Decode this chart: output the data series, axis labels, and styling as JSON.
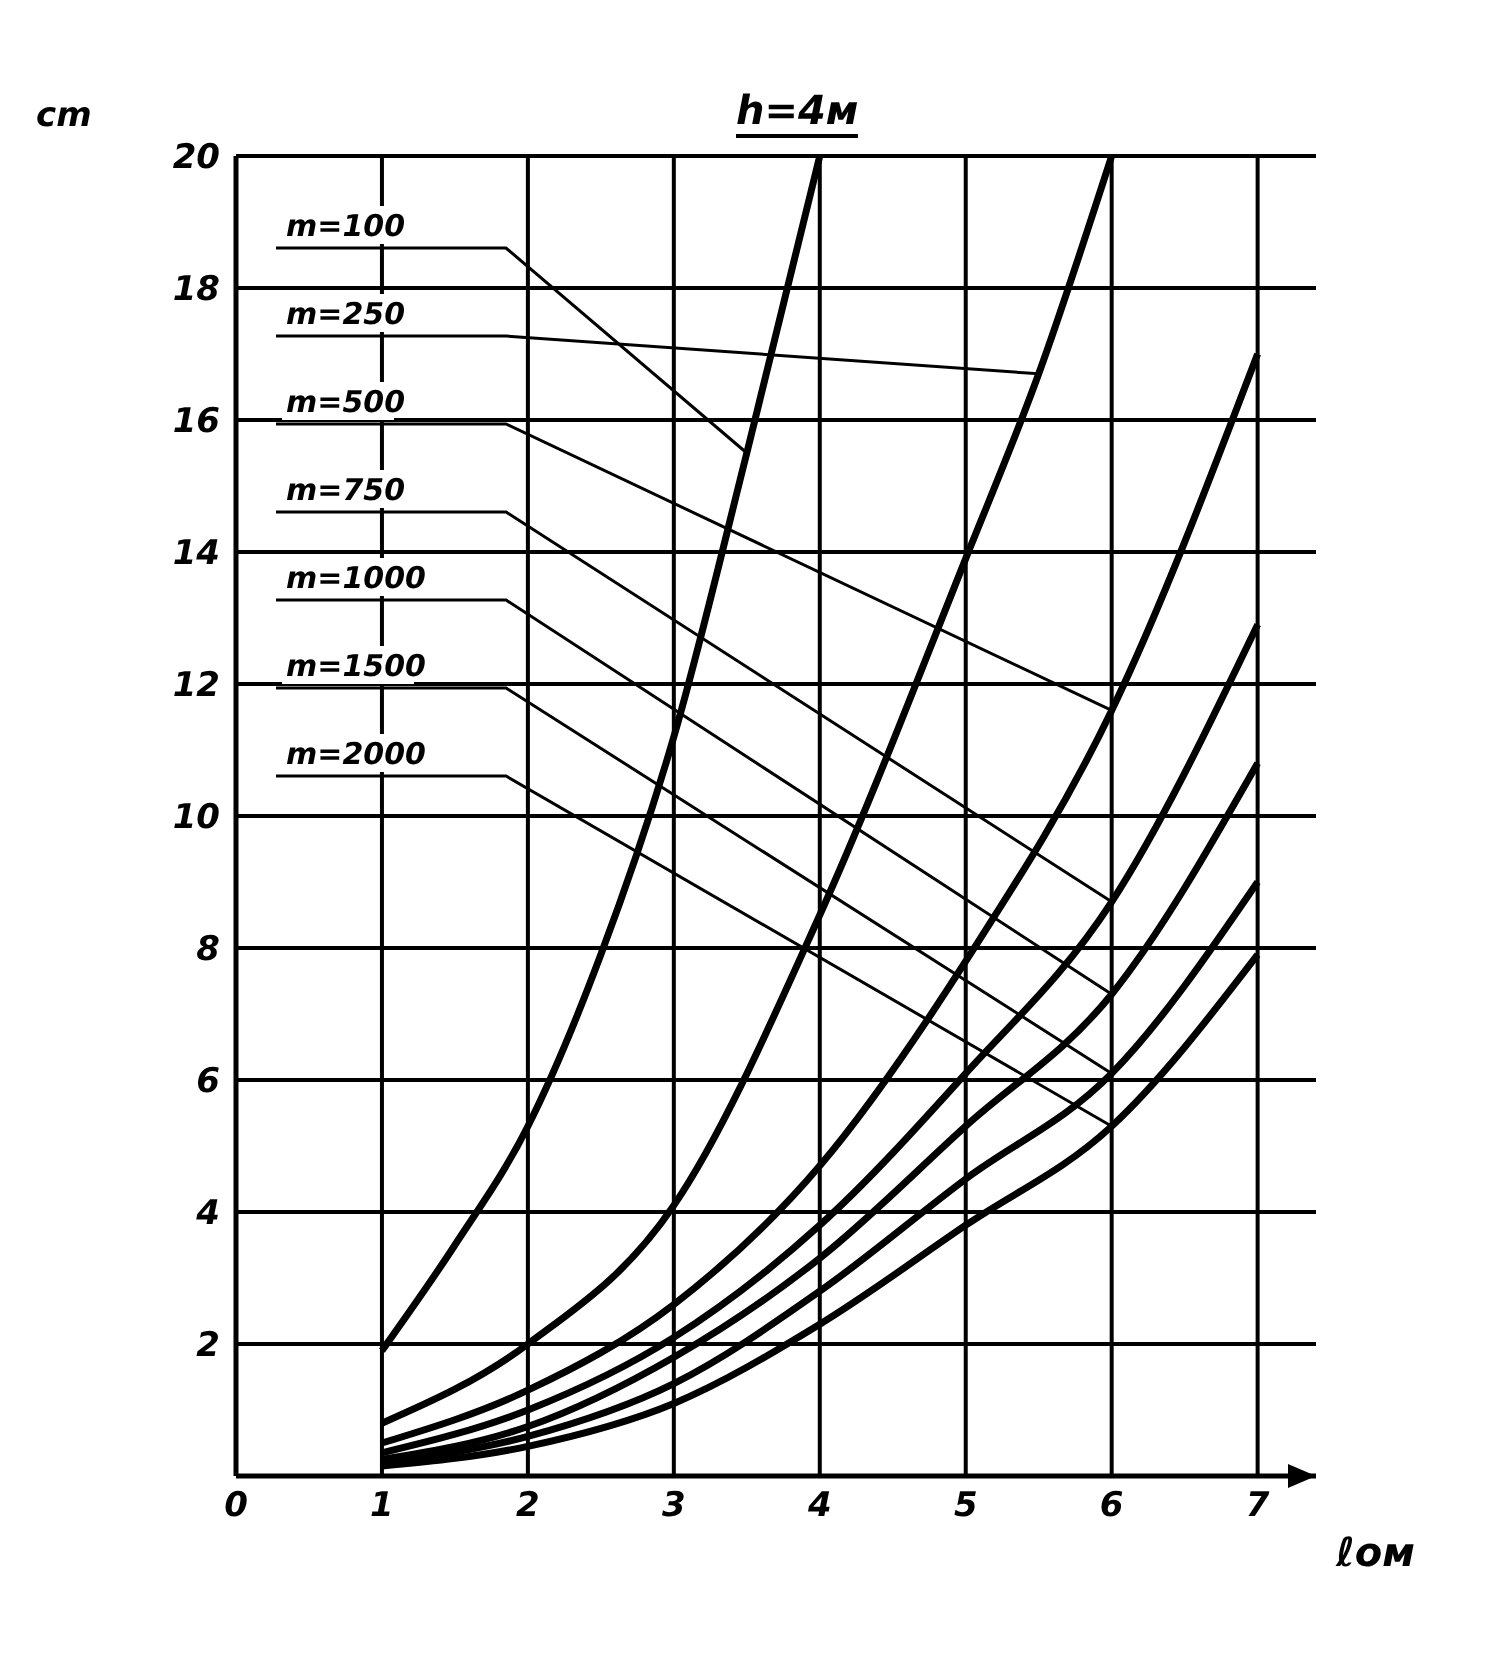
{
  "chart_data": {
    "type": "line",
    "title": "h=4м",
    "xlabel": "ℓом",
    "ylabel": "cm",
    "xlim": [
      0,
      7.4
    ],
    "xticks": [
      0,
      1,
      2,
      3,
      4,
      5,
      6,
      7
    ],
    "ylim": [
      0,
      20
    ],
    "yticks": [
      2,
      4,
      6,
      8,
      10,
      12,
      14,
      16,
      18,
      20
    ],
    "grid": true,
    "legend": false,
    "marker": "none",
    "line_style": "solid",
    "series": [
      {
        "name": "m=100",
        "color": "#000000",
        "x": [
          1,
          1.5,
          2,
          2.5,
          3,
          3.5,
          4
        ],
        "values": [
          1.9,
          3.5,
          5.3,
          7.9,
          11.2,
          15.5,
          20
        ]
      },
      {
        "name": "m=250",
        "color": "#000000",
        "x": [
          1,
          2,
          3,
          4,
          5,
          5.5,
          6
        ],
        "values": [
          0.8,
          2,
          4.1,
          8.5,
          13.9,
          16.7,
          20
        ]
      },
      {
        "name": "m=500",
        "color": "#000000",
        "x": [
          1,
          2,
          3,
          4,
          5,
          6,
          7
        ],
        "values": [
          0.5,
          1.3,
          2.6,
          4.7,
          7.8,
          11.6,
          17
        ]
      },
      {
        "name": "m=750",
        "color": "#000000",
        "x": [
          1,
          2,
          3,
          4,
          5,
          6,
          7
        ],
        "values": [
          0.35,
          1,
          2.1,
          3.8,
          6.1,
          8.7,
          12.9
        ]
      },
      {
        "name": "m=1000",
        "color": "#000000",
        "x": [
          1,
          2,
          3,
          4,
          5,
          6,
          7
        ],
        "values": [
          0.25,
          0.75,
          1.8,
          3.3,
          5.3,
          7.3,
          10.8
        ]
      },
      {
        "name": "m=1500",
        "color": "#000000",
        "x": [
          1,
          2,
          3,
          4,
          5,
          6,
          7
        ],
        "values": [
          0.2,
          0.6,
          1.4,
          2.8,
          4.5,
          6.1,
          9
        ]
      },
      {
        "name": "m=2000",
        "color": "#000000",
        "x": [
          1,
          2,
          3,
          4,
          5,
          6,
          7
        ],
        "values": [
          0.15,
          0.45,
          1.1,
          2.3,
          3.8,
          5.3,
          7.9
        ]
      }
    ]
  }
}
